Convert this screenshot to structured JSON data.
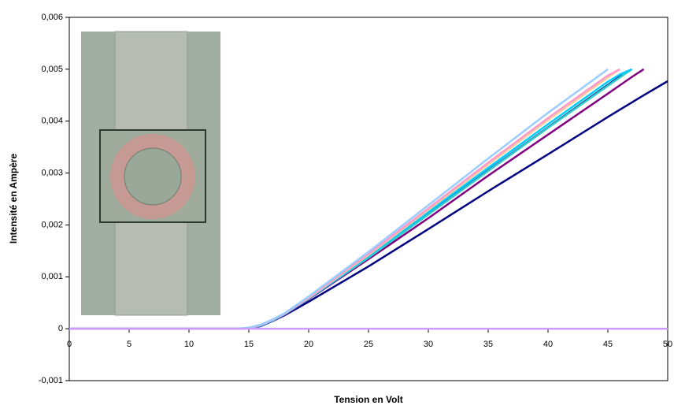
{
  "chart_data": {
    "type": "line",
    "x_label": "Tension en Volt",
    "y_label": "Intensité en Ampère",
    "x": [
      0,
      10,
      14,
      15,
      16,
      17,
      18,
      20,
      25,
      30,
      35,
      40,
      45,
      46,
      47,
      48,
      50
    ],
    "series": [
      {
        "color": "#000080",
        "values": [
          0,
          0,
          0,
          1e-05,
          5e-05,
          0.00015,
          0.00026,
          0.00052,
          0.0012,
          0.00192,
          0.00265,
          0.00336,
          0.00408,
          0.00422,
          0.00436,
          0.0045,
          0.00477
        ]
      },
      {
        "color": "#800080",
        "values": [
          0,
          0,
          0,
          1e-05,
          6e-05,
          0.00016,
          0.00027,
          0.00057,
          0.00134,
          0.00213,
          0.00295,
          0.00374,
          0.00453,
          0.00469,
          0.00485,
          0.005,
          null
        ]
      },
      {
        "color": "#003399",
        "values": [
          0,
          0,
          0,
          1e-05,
          6e-05,
          0.00016,
          0.00028,
          0.00058,
          0.00138,
          0.00221,
          0.00305,
          0.00388,
          0.0047,
          0.00486,
          0.005,
          null,
          null
        ]
      },
      {
        "color": "#33cccc",
        "values": [
          0,
          0,
          0,
          1e-05,
          6e-05,
          0.00016,
          0.00028,
          0.00058,
          0.00137,
          0.0022,
          0.00304,
          0.00387,
          0.00468,
          0.00484,
          0.005,
          null,
          null
        ]
      },
      {
        "color": "#00ccff",
        "values": [
          0,
          0,
          0,
          2e-05,
          6e-05,
          0.00016,
          0.00028,
          0.00058,
          0.0014,
          0.00225,
          0.0031,
          0.00394,
          0.00476,
          0.0049,
          0.005,
          null,
          null
        ]
      },
      {
        "color": "#ffcc99",
        "values": [
          0,
          0,
          0,
          1e-05,
          7e-05,
          0.00017,
          0.00029,
          0.00059,
          0.00142,
          0.00229,
          0.00316,
          0.00402,
          0.00484,
          0.005,
          null,
          null,
          null
        ]
      },
      {
        "color": "#ff99cc",
        "values": [
          0,
          0,
          0,
          1e-05,
          7e-05,
          0.00017,
          0.00029,
          0.0006,
          0.00144,
          0.00232,
          0.0032,
          0.00406,
          0.00488,
          0.005,
          null,
          null,
          null
        ]
      },
      {
        "color": "#99ccff",
        "values": [
          0,
          0,
          0,
          2e-05,
          8e-05,
          0.00018,
          0.0003,
          0.00062,
          0.00148,
          0.00238,
          0.00328,
          0.00416,
          0.005,
          null,
          null,
          null,
          null
        ]
      },
      {
        "color": "#cc99ff",
        "values": [
          0,
          0,
          0,
          0,
          0,
          0,
          0,
          0,
          0,
          0,
          0,
          0,
          0,
          0,
          0,
          0,
          0
        ]
      }
    ],
    "xlim": [
      0,
      50
    ],
    "xticks": [
      0,
      5,
      10,
      15,
      20,
      25,
      30,
      35,
      40,
      45,
      50
    ],
    "ylim": [
      -0.001,
      0.006
    ],
    "yticks": [
      {
        "value": -0.001,
        "label": "-0,001"
      },
      0,
      {
        "value": 0.001,
        "label": "0,001"
      },
      {
        "value": 0.002,
        "label": "0,002"
      },
      {
        "value": 0.003,
        "label": "0,003"
      },
      {
        "value": 0.004,
        "label": "0,004"
      },
      {
        "value": 0.005,
        "label": "0,005"
      },
      {
        "value": 0.006,
        "label": "0,006"
      }
    ]
  }
}
